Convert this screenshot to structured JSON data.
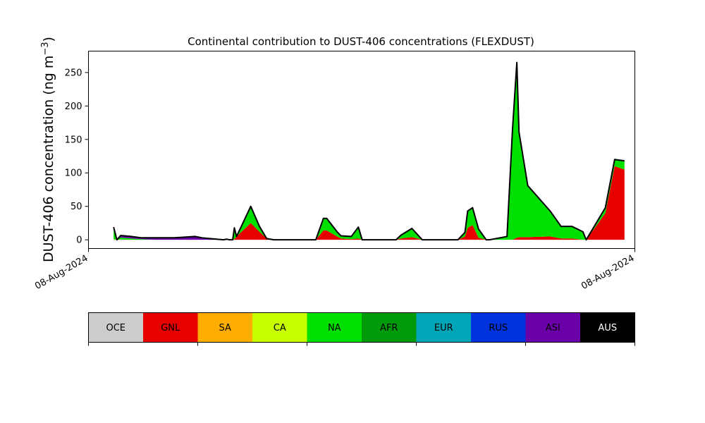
{
  "chart_data": {
    "type": "area",
    "title": "Continental contribution to DUST-406 concentrations (FLEXDUST)",
    "ylabel": "DUST-406 concentration (ng m⁻³)",
    "ylabel_main": "DUST-406 concentration (ng m",
    "ylabel_sup": "−3",
    "ylabel_close": ")",
    "xlabel": "",
    "xlim": [
      0,
      100
    ],
    "ylim": [
      -13,
      282
    ],
    "yticks": [
      0,
      50,
      100,
      150,
      200,
      250
    ],
    "xticks": [
      {
        "x": 0,
        "label": "08-Aug-2024"
      },
      {
        "x": 100,
        "label": "08-Aug-2024"
      }
    ],
    "grid": false,
    "stacked": true,
    "x": [
      4.6,
      5.2,
      5.9,
      7.8,
      9.7,
      12.3,
      13.6,
      15.6,
      19.5,
      20.8,
      24.7,
      25.3,
      25.8,
      26.0,
      26.4,
      26.7,
      27.1,
      29.7,
      31.3,
      32.6,
      33.9,
      35.8,
      37.2,
      39.7,
      41.6,
      43.0,
      43.6,
      45.5,
      46.2,
      48.1,
      49.4,
      50.1,
      50.5,
      55.6,
      56.3,
      57.2,
      59.2,
      61.1,
      63.7,
      65.0,
      67.6,
      68.9,
      69.4,
      70.3,
      71.4,
      72.8,
      73.4,
      76.6,
      77.6,
      78.4,
      78.8,
      80.4,
      84.5,
      86.5,
      88.5,
      90.5,
      91.1,
      94.6,
      96.3,
      98.1
    ],
    "series": [
      {
        "name": "GNL",
        "color": "#e60000",
        "values": [
          0.5,
          0,
          0.5,
          0,
          0,
          0,
          0,
          0,
          0,
          0,
          0,
          0,
          0,
          0,
          0,
          1,
          5,
          25,
          12,
          2,
          0,
          0,
          0,
          0,
          0,
          14,
          14,
          5,
          2,
          1,
          2,
          0,
          0,
          0,
          0,
          2,
          4,
          0,
          0,
          0,
          0,
          5,
          18,
          22,
          3,
          0,
          0,
          0,
          0,
          3,
          4,
          4,
          5,
          2,
          2,
          0,
          0,
          40,
          110,
          105
        ]
      },
      {
        "name": "CA",
        "color": "#c8ff00",
        "values": [
          0.5,
          0,
          0,
          0,
          0,
          0,
          0,
          0,
          0,
          0,
          0,
          0,
          0,
          0,
          0,
          0,
          0,
          0,
          0,
          0,
          0,
          0,
          0,
          0,
          0,
          0,
          0,
          0,
          0,
          0,
          0,
          0,
          0,
          0,
          0,
          0,
          0,
          0,
          0,
          0,
          0,
          0,
          0,
          0,
          0,
          0,
          0,
          0,
          0,
          0,
          0,
          0,
          0,
          0,
          0,
          0,
          0,
          0,
          0,
          0
        ]
      },
      {
        "name": "NA",
        "color": "#00e000",
        "values": [
          18,
          0,
          3,
          2,
          1,
          0,
          0,
          0,
          0,
          0,
          0,
          0,
          0,
          0,
          0,
          17,
          0,
          25,
          8,
          0,
          0,
          0,
          0,
          0,
          0,
          18,
          18,
          7,
          4,
          4,
          17,
          0,
          0,
          0,
          0,
          5,
          13,
          0,
          0,
          0,
          0,
          6,
          25,
          26,
          13,
          0,
          0,
          5,
          164,
          262,
          157,
          77,
          38,
          18,
          18,
          12,
          0,
          8,
          10,
          13
        ]
      },
      {
        "name": "ASI",
        "color": "#6a00a8",
        "values": [
          0,
          0,
          3,
          3,
          2,
          3,
          3,
          3,
          5,
          3,
          0,
          1,
          0,
          0,
          0,
          0,
          0,
          0,
          0,
          0,
          0,
          0,
          0,
          0,
          0,
          0,
          0,
          0,
          0,
          0,
          0,
          0,
          0,
          0,
          0,
          0,
          0,
          0,
          0,
          0,
          0,
          0,
          0,
          0,
          0,
          0,
          0,
          0,
          0,
          0,
          0,
          0,
          0,
          0,
          0,
          0,
          0,
          0,
          0,
          0
        ]
      }
    ],
    "legend": {
      "placement": "bottom",
      "entries": [
        {
          "code": "OCE",
          "color": "#cccccc",
          "text_color": "#000000"
        },
        {
          "code": "GNL",
          "color": "#e60000",
          "text_color": "#000000"
        },
        {
          "code": "SA",
          "color": "#ffad00",
          "text_color": "#000000"
        },
        {
          "code": "CA",
          "color": "#c8ff00",
          "text_color": "#000000"
        },
        {
          "code": "NA",
          "color": "#00e000",
          "text_color": "#000000"
        },
        {
          "code": "AFR",
          "color": "#009a0a",
          "text_color": "#000000"
        },
        {
          "code": "EUR",
          "color": "#00a6b8",
          "text_color": "#000000"
        },
        {
          "code": "RUS",
          "color": "#0033dd",
          "text_color": "#000000"
        },
        {
          "code": "ASI",
          "color": "#6a00a8",
          "text_color": "#000000"
        },
        {
          "code": "AUS",
          "color": "#000000",
          "text_color": "#ffffff"
        }
      ]
    }
  }
}
